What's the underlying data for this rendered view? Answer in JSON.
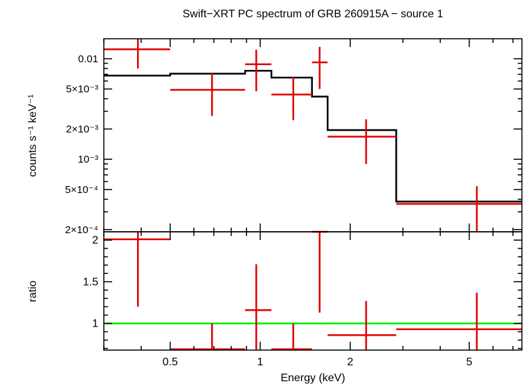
{
  "chart_data": {
    "title": "Swift−XRT PC spectrum of GRB 260915A − source 1",
    "xlabel": "Energy (keV)",
    "x_scale": "log",
    "xlim": [
      0.3,
      7.5
    ],
    "x_ticks": [
      0.5,
      1,
      2,
      5
    ],
    "x_tick_labels": [
      "0.5",
      "1",
      "2",
      "5"
    ],
    "top_panel": {
      "type": "scatter",
      "ylabel": "counts s⁻¹ keV⁻¹",
      "y_scale": "log",
      "ylim": [
        0.00019,
        0.0158
      ],
      "y_ticks": [
        0.01,
        0.005,
        0.002,
        0.001,
        0.0005,
        0.0002
      ],
      "y_tick_labels": [
        "0.01",
        "5×10⁻³",
        "2×10⁻³",
        "10⁻³",
        "5×10⁻⁴",
        "2×10⁻⁴"
      ],
      "data_color": "#e00000",
      "data": [
        {
          "x": 0.39,
          "xlo": 0.3,
          "xhi": 0.5,
          "y": 0.0124,
          "ylo": 0.008,
          "yhi": 0.0158
        },
        {
          "x": 0.69,
          "xlo": 0.5,
          "xhi": 0.89,
          "y": 0.0049,
          "ylo": 0.0027,
          "yhi": 0.00715
        },
        {
          "x": 0.97,
          "xlo": 0.89,
          "xhi": 1.09,
          "y": 0.0088,
          "ylo": 0.00475,
          "yhi": 0.0123
        },
        {
          "x": 1.29,
          "xlo": 1.09,
          "xhi": 1.49,
          "y": 0.0044,
          "ylo": 0.00245,
          "yhi": 0.0066
        },
        {
          "x": 1.58,
          "xlo": 1.49,
          "xhi": 1.68,
          "y": 0.0092,
          "ylo": 0.005,
          "yhi": 0.0131
        },
        {
          "x": 2.26,
          "xlo": 1.68,
          "xhi": 2.85,
          "y": 0.00168,
          "ylo": 0.0009,
          "yhi": 0.0025
        },
        {
          "x": 5.3,
          "xlo": 2.85,
          "xhi": 7.5,
          "y": 0.00036,
          "ylo": 0.00019,
          "yhi": 0.00054
        }
      ],
      "model_color": "#000000",
      "model_steps": [
        {
          "xlo": 0.3,
          "xhi": 0.5,
          "y": 0.0068
        },
        {
          "xlo": 0.5,
          "xhi": 0.89,
          "y": 0.0071
        },
        {
          "xlo": 0.89,
          "xhi": 1.09,
          "y": 0.0076
        },
        {
          "xlo": 1.09,
          "xhi": 1.49,
          "y": 0.0065
        },
        {
          "xlo": 1.49,
          "xhi": 1.68,
          "y": 0.0042
        },
        {
          "xlo": 1.68,
          "xhi": 2.85,
          "y": 0.00195
        },
        {
          "xlo": 2.85,
          "xhi": 7.5,
          "y": 0.00038
        }
      ]
    },
    "bottom_panel": {
      "type": "scatter",
      "ylabel": "ratio",
      "y_scale": "linear",
      "ylim": [
        0.68,
        2.1
      ],
      "y_ticks": [
        1,
        1.5,
        2
      ],
      "y_tick_labels": [
        "1",
        "1.5",
        "2"
      ],
      "data_color": "#e00000",
      "data": [
        {
          "x": 0.39,
          "xlo": 0.3,
          "xhi": 0.5,
          "y": 2.01,
          "ylo": 1.2,
          "yhi": 2.1
        },
        {
          "x": 0.69,
          "xlo": 0.5,
          "xhi": 0.89,
          "y": 0.69,
          "ylo": 0.68,
          "yhi": 1.0
        },
        {
          "x": 0.97,
          "xlo": 0.89,
          "xhi": 1.09,
          "y": 1.16,
          "ylo": 0.68,
          "yhi": 1.71
        },
        {
          "x": 1.29,
          "xlo": 1.09,
          "xhi": 1.49,
          "y": 0.69,
          "ylo": 0.68,
          "yhi": 1.0
        },
        {
          "x": 1.58,
          "xlo": 1.49,
          "xhi": 1.68,
          "y": 2.1,
          "ylo": 1.13,
          "yhi": 2.1
        },
        {
          "x": 2.26,
          "xlo": 1.68,
          "xhi": 2.85,
          "y": 0.86,
          "ylo": 0.68,
          "yhi": 1.27
        },
        {
          "x": 5.3,
          "xlo": 2.85,
          "xhi": 7.5,
          "y": 0.93,
          "ylo": 0.68,
          "yhi": 1.37
        }
      ],
      "reference_line": {
        "y": 1,
        "color": "#00ee00"
      }
    }
  }
}
